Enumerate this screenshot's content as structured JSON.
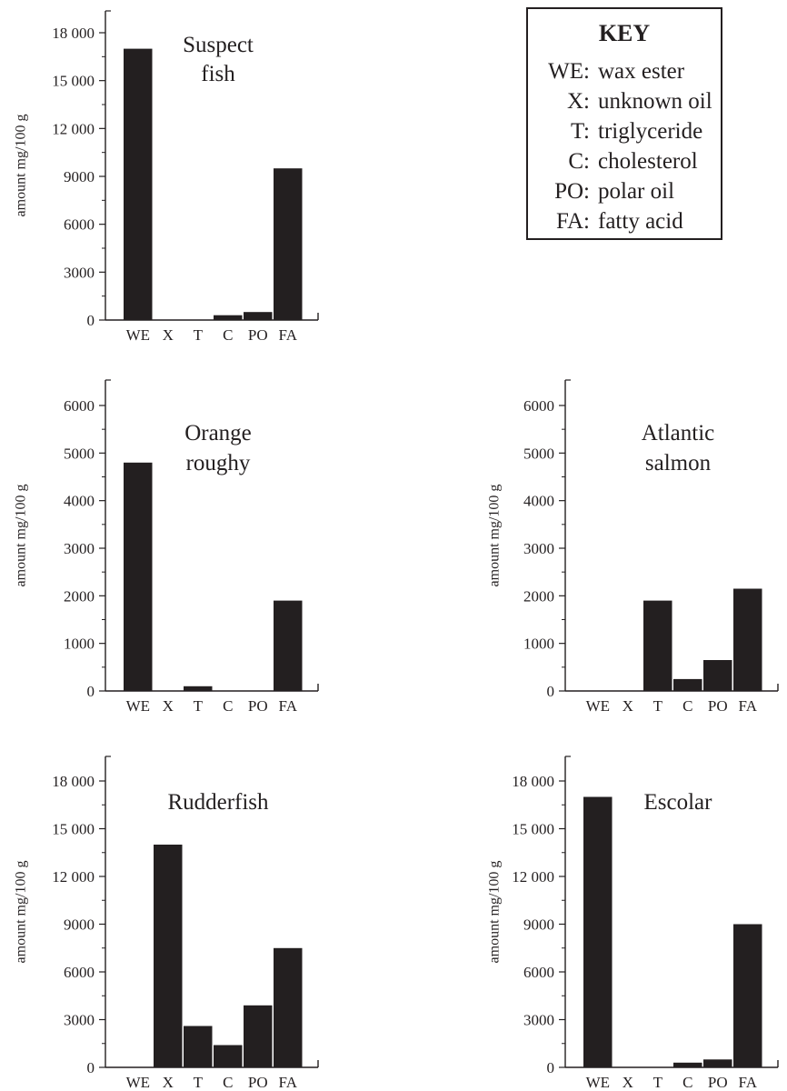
{
  "colors": {
    "bar": "#231f20",
    "axis": "#231f20",
    "text": "#231f20"
  },
  "key": {
    "title": "KEY",
    "items": [
      {
        "code": "WE:",
        "label": "wax ester"
      },
      {
        "code": "X:",
        "label": "unknown oil"
      },
      {
        "code": "T:",
        "label": "triglyceride"
      },
      {
        "code": "C:",
        "label": "cholesterol"
      },
      {
        "code": "PO:",
        "label": "polar oil"
      },
      {
        "code": "FA:",
        "label": "fatty acid"
      }
    ]
  },
  "chart_data": [
    {
      "type": "bar",
      "title_lines": [
        "Suspect",
        "fish"
      ],
      "ylabel": "amount mg/100 g",
      "categories": [
        "WE",
        "X",
        "T",
        "C",
        "PO",
        "FA"
      ],
      "values": [
        17000,
        0,
        0,
        300,
        500,
        9500
      ],
      "ylim": [
        0,
        18000
      ],
      "yticks": [
        0,
        3000,
        6000,
        9000,
        12000,
        15000,
        18000
      ],
      "ytick_labels": [
        "0",
        "3000",
        "6000",
        "9000",
        "12 000",
        "15 000",
        "18 000"
      ]
    },
    {
      "type": "bar",
      "title_lines": [
        "Orange",
        "roughy"
      ],
      "ylabel": "amount mg/100 g",
      "categories": [
        "WE",
        "X",
        "T",
        "C",
        "PO",
        "FA"
      ],
      "values": [
        4800,
        0,
        100,
        0,
        0,
        1900
      ],
      "ylim": [
        0,
        6000
      ],
      "yticks": [
        0,
        1000,
        2000,
        3000,
        4000,
        5000,
        6000
      ],
      "ytick_labels": [
        "0",
        "1000",
        "2000",
        "3000",
        "4000",
        "5000",
        "6000"
      ]
    },
    {
      "type": "bar",
      "title_lines": [
        "Atlantic",
        "salmon"
      ],
      "ylabel": "amount mg/100 g",
      "categories": [
        "WE",
        "X",
        "T",
        "C",
        "PO",
        "FA"
      ],
      "values": [
        0,
        0,
        1900,
        250,
        650,
        2150
      ],
      "ylim": [
        0,
        6000
      ],
      "yticks": [
        0,
        1000,
        2000,
        3000,
        4000,
        5000,
        6000
      ],
      "ytick_labels": [
        "0",
        "1000",
        "2000",
        "3000",
        "4000",
        "5000",
        "6000"
      ]
    },
    {
      "type": "bar",
      "title_lines": [
        "Rudderfish"
      ],
      "ylabel": "amount mg/100 g",
      "categories": [
        "WE",
        "X",
        "T",
        "C",
        "PO",
        "FA"
      ],
      "values": [
        0,
        14000,
        2600,
        1400,
        3900,
        7500
      ],
      "ylim": [
        0,
        18000
      ],
      "yticks": [
        0,
        3000,
        6000,
        9000,
        12000,
        15000,
        18000
      ],
      "ytick_labels": [
        "0",
        "3000",
        "6000",
        "9000",
        "12 000",
        "15 000",
        "18 000"
      ]
    },
    {
      "type": "bar",
      "title_lines": [
        "Escolar"
      ],
      "ylabel": "amount mg/100 g",
      "categories": [
        "WE",
        "X",
        "T",
        "C",
        "PO",
        "FA"
      ],
      "values": [
        17000,
        0,
        0,
        300,
        500,
        9000
      ],
      "ylim": [
        0,
        18000
      ],
      "yticks": [
        0,
        3000,
        6000,
        9000,
        12000,
        15000,
        18000
      ],
      "ytick_labels": [
        "0",
        "3000",
        "6000",
        "9000",
        "12 000",
        "15 000",
        "18 000"
      ]
    }
  ]
}
